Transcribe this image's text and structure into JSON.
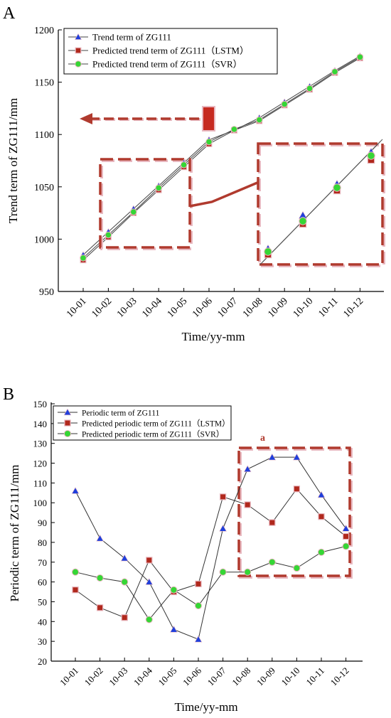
{
  "colors": {
    "series_blue": "#1f3fdc",
    "series_red": "#b0281c",
    "series_green": "#35d635",
    "line": "#555555",
    "annotation": "#b03a2e",
    "annotation_shadow": "#e8b8c0"
  },
  "chart_data": [
    {
      "panel_label": "A",
      "type": "line",
      "xlabel": "Time/yy-mm",
      "ylabel": "Trend term of ZG111/mm",
      "categories": [
        "10-01",
        "10-02",
        "10-03",
        "10-04",
        "10-05",
        "10-06",
        "10-07",
        "10-08",
        "10-09",
        "10-10",
        "10-11",
        "10-12"
      ],
      "ylim": [
        950,
        1200
      ],
      "yticks": [
        950,
        1000,
        1050,
        1100,
        1150,
        1200
      ],
      "grid": false,
      "legend_position": "top-left",
      "series": [
        {
          "name": "Trend term of ZG111",
          "marker": "triangle",
          "color": "#1f3fdc",
          "values": [
            985,
            1007,
            1029,
            1051,
            1073,
            1095,
            1104,
            1116,
            1131,
            1146,
            1161,
            1175
          ]
        },
        {
          "name": "Predicted trend term of ZG111（LSTM）",
          "marker": "square",
          "color": "#b0281c",
          "values": [
            980,
            1002,
            1025,
            1047,
            1069,
            1091,
            1104,
            1113,
            1128,
            1143,
            1159,
            1173
          ]
        },
        {
          "name": "Predicted trend term of ZG111（SVR）",
          "marker": "circle",
          "color": "#35d635",
          "values": [
            982,
            1004,
            1026,
            1049,
            1071,
            1093,
            1105,
            1114,
            1129,
            1144,
            1160,
            1174
          ]
        }
      ],
      "inset_zoom": {
        "marker_values": {
          "triangle": [
            991,
            1022,
            1053,
            1084
          ],
          "square": [
            984,
            1014,
            1045,
            1076
          ],
          "circle": [
            987,
            1018,
            1049,
            1080
          ]
        }
      }
    },
    {
      "panel_label": "B",
      "type": "line",
      "xlabel": "Time/yy-mm",
      "ylabel": "Periodic term of ZG111/mm",
      "categories": [
        "10-01",
        "10-02",
        "10-03",
        "10-04",
        "10-05",
        "10-06",
        "10-07",
        "10-08",
        "10-09",
        "10-10",
        "10-11",
        "10-12"
      ],
      "ylim": [
        20,
        150
      ],
      "yticks": [
        20,
        30,
        40,
        50,
        60,
        70,
        80,
        90,
        100,
        110,
        120,
        130,
        140,
        150
      ],
      "grid": false,
      "legend_position": "top-left",
      "annotation_label": "a",
      "series": [
        {
          "name": "Periodic term of ZG111",
          "marker": "triangle",
          "color": "#1f3fdc",
          "values": [
            106,
            82,
            72,
            60,
            36,
            31,
            87,
            117,
            123,
            123,
            104,
            87
          ]
        },
        {
          "name": "Predicted periodic term of ZG111（LSTM）",
          "marker": "square",
          "color": "#b0281c",
          "values": [
            56,
            47,
            42,
            71,
            55,
            59,
            103,
            99,
            90,
            107,
            93,
            83
          ]
        },
        {
          "name": "Predicted periodic term of ZG111（SVR）",
          "marker": "circle",
          "color": "#35d635",
          "values": [
            65,
            62,
            60,
            41,
            56,
            48,
            65,
            65,
            70,
            67,
            75,
            78
          ]
        }
      ]
    }
  ]
}
